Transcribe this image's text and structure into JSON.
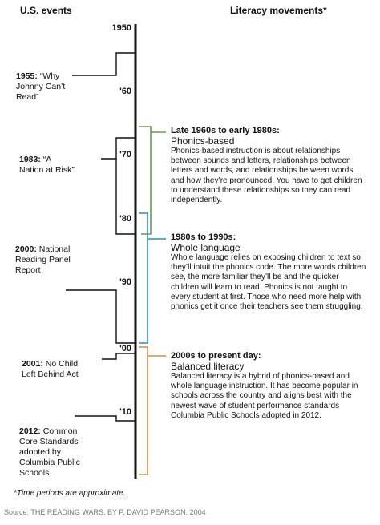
{
  "headers": {
    "left": "U.S. events",
    "right": "Literacy movements*"
  },
  "decades": [
    "1950",
    "'60",
    "'70",
    "'80",
    "'90",
    "'00",
    "'10"
  ],
  "events": [
    {
      "year": "1955:",
      "rest": "“Why",
      "lines": [
        "Johnny Can’t",
        "Read”"
      ]
    },
    {
      "year": "1983:",
      "rest": "“A",
      "lines": [
        "Nation at Risk”"
      ]
    },
    {
      "year": "2000:",
      "rest": "National",
      "lines": [
        "Reading Panel",
        "Report"
      ]
    },
    {
      "year": "2001:",
      "rest": "No Child",
      "lines": [
        "Left Behind Act"
      ]
    },
    {
      "year": "2012:",
      "rest": "Common",
      "lines": [
        "Core Standards",
        "adopted by",
        "Columbia Public",
        "Schools"
      ]
    }
  ],
  "movements": [
    {
      "period": "Late 1960s to early 1980s:",
      "name": "Phonics-based",
      "description": "Phonics-based instruction is about relationships between sounds and letters, relationships between letters and words, and relationships between words and how they’re pronounced. You have to get children to understand these relationships so they can read independently.",
      "color": "#6b9a4f"
    },
    {
      "period": "1980s to 1990s:",
      "name": "Whole language",
      "description": "Whole language relies on exposing children to text so they’ll intuit the phonics code. The more words children see, the more familiar they’ll be and the quicker children will learn to read. Phonics is not taught to every student at first. Those who need more help with phonics get it once their teachers see them struggling.",
      "color": "#2a8fc1"
    },
    {
      "period": "2000s to present day:",
      "name": "Balanced literacy",
      "description": "Balanced literacy is a hybrid of phonics-based and whole language instruction. It has become popular in schools across the country and aligns best with the newest wave of student performance standards Columbia Public Schools adopted in 2012.",
      "color": "#c8924a"
    }
  ],
  "footnote": "*Time periods are approximate.",
  "source": "Source: THE READING WARS, BY P. DAVID PEARSON, 2004"
}
